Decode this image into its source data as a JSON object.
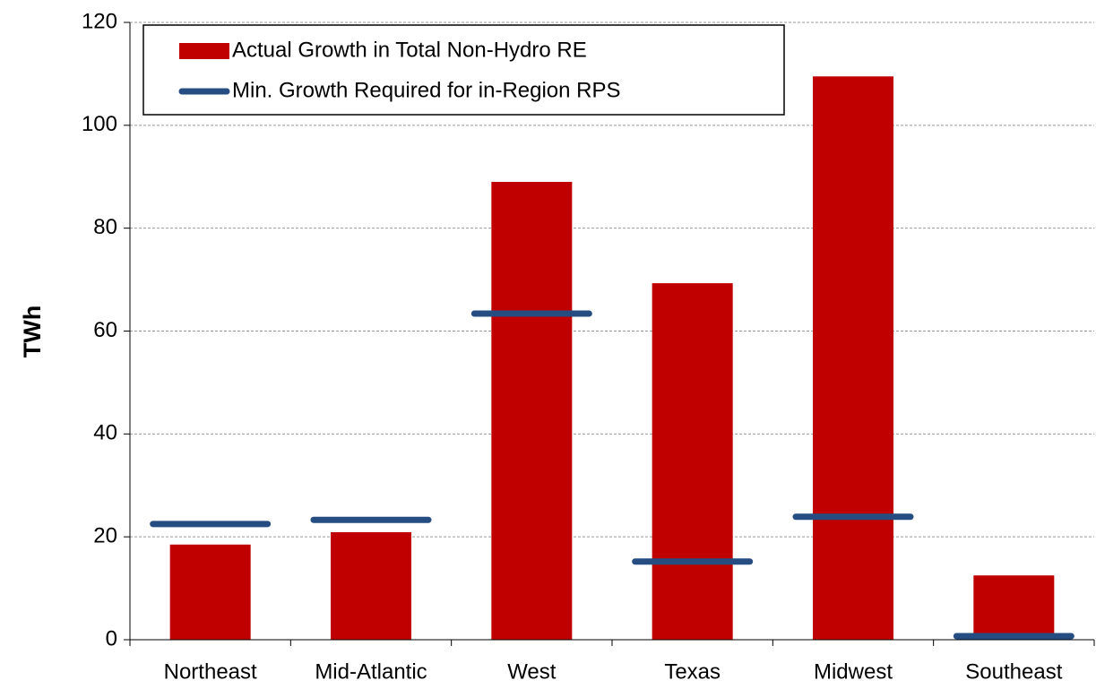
{
  "chart_data": {
    "type": "bar",
    "y_label": "TWh",
    "categories": [
      "Northeast",
      "Mid-Atlantic",
      "West",
      "Texas",
      "Midwest",
      "Southeast"
    ],
    "series": [
      {
        "name": "Actual Growth in Total Non-Hydro RE",
        "mark": "bar",
        "color": "#c00000",
        "values": [
          18.5,
          20.9,
          89.0,
          69.3,
          109.5,
          12.5
        ]
      },
      {
        "name": "Min. Growth Required for in-Region RPS",
        "mark": "dash",
        "color": "#264d82",
        "values": [
          22.5,
          23.3,
          63.4,
          15.2,
          23.9,
          0.7
        ]
      }
    ],
    "ylim": [
      0,
      120
    ],
    "yticks": [
      0,
      20,
      40,
      60,
      80,
      100,
      120
    ],
    "grid": true,
    "legend": "top-left"
  }
}
